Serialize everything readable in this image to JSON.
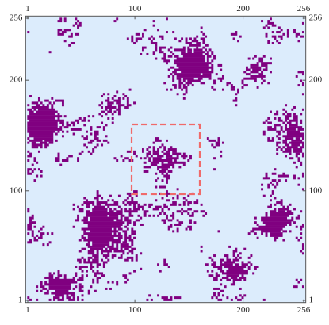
{
  "chart_data": {
    "type": "array",
    "xlim": [
      1,
      256
    ],
    "ylim": [
      1,
      256
    ],
    "xticks": [
      1,
      100,
      200,
      256
    ],
    "yticks": [
      1,
      100,
      200,
      256
    ],
    "colors": {
      "occupied": "#800080",
      "empty": "#dcecfc"
    },
    "highlight": {
      "x": [
        97,
        160
      ],
      "y": [
        97,
        160
      ],
      "color": "#f06a6a"
    }
  }
}
